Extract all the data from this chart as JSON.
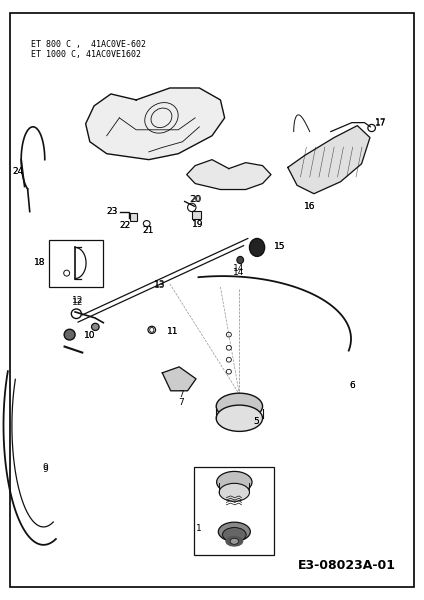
{
  "title_line1": "ET 800 C ,  41AC0VE-602",
  "title_line2": "ET 1000 C, 41AC0VE1602",
  "footer": "E3-08023A-01",
  "bg_color": "#ffffff",
  "border_color": "#000000",
  "text_color": "#000000",
  "fig_width": 4.24,
  "fig_height": 6.0,
  "dpi": 100
}
